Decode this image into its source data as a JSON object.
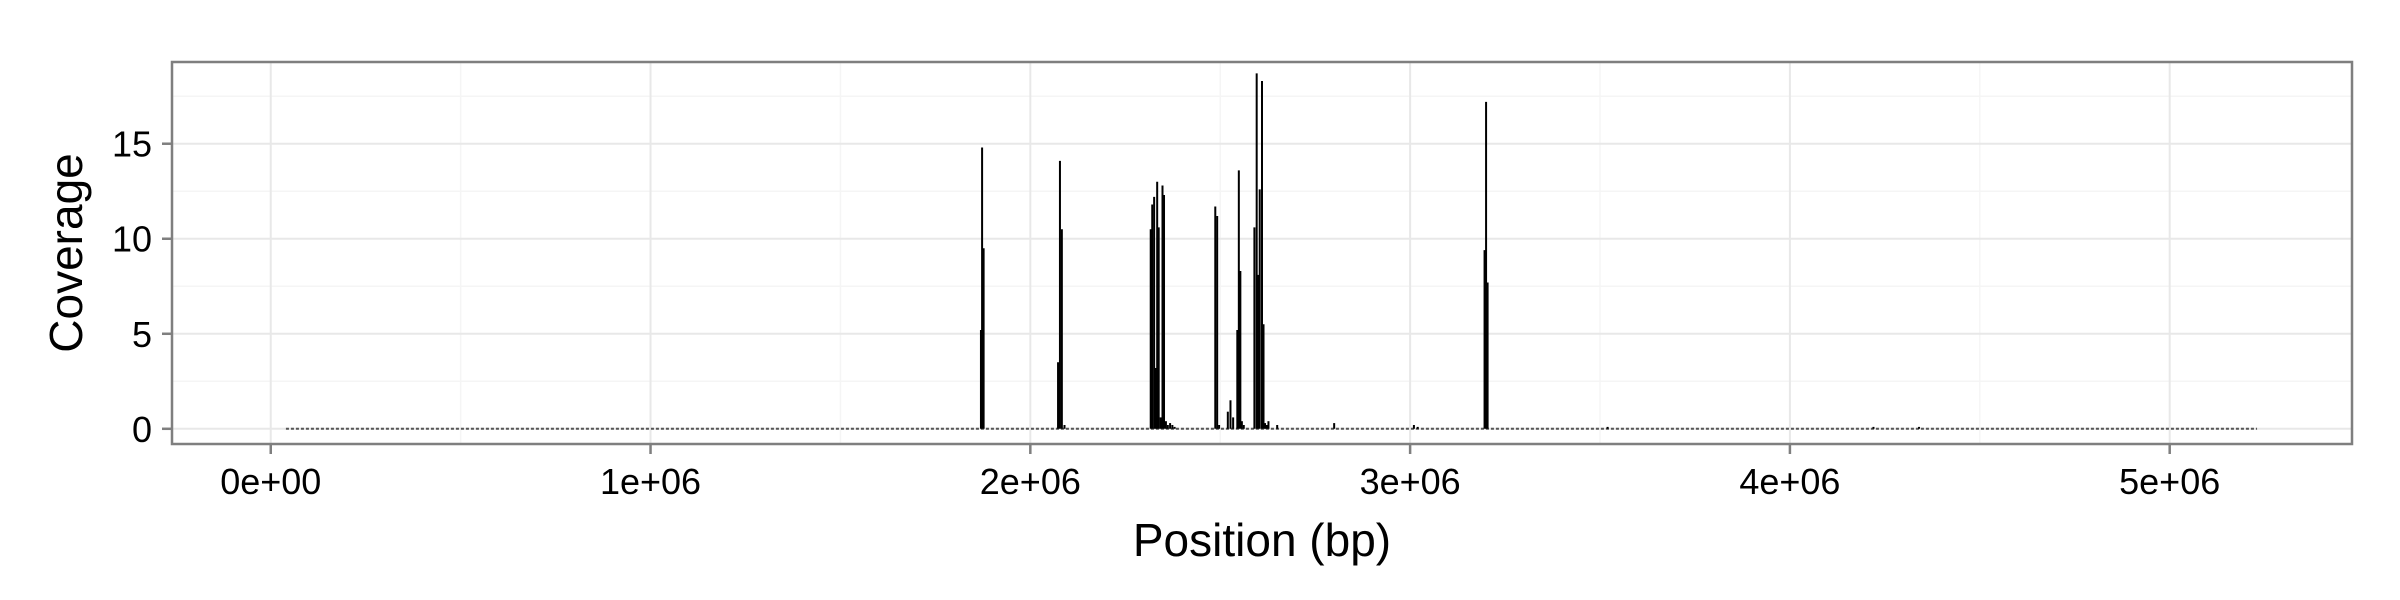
{
  "chart_data": {
    "type": "line",
    "title": "",
    "xlabel": "Position (bp)",
    "ylabel": "Coverage",
    "xlim": [
      -260000,
      5480000
    ],
    "ylim": [
      -0.8,
      19.3
    ],
    "x_ticks": [
      0,
      1000000,
      2000000,
      3000000,
      4000000,
      5000000
    ],
    "x_tick_labels": [
      "0e+00",
      "1e+06",
      "2e+06",
      "3e+06",
      "4e+06",
      "5e+06"
    ],
    "y_ticks": [
      0,
      5,
      10,
      15
    ],
    "y_tick_labels": [
      "0",
      "5",
      "10",
      "15"
    ],
    "grid": true,
    "legend": "none",
    "baseline_range": [
      40000,
      5230000
    ],
    "series": [
      {
        "color": "#000000",
        "x": [
          1870000,
          1873000,
          1877000,
          2073000,
          2078000,
          2083000,
          2090000,
          2317000,
          2321000,
          2326000,
          2330000,
          2334000,
          2338000,
          2343000,
          2348000,
          2352000,
          2357000,
          2362000,
          2368000,
          2374000,
          2380000,
          2487000,
          2492000,
          2497000,
          2520000,
          2527000,
          2534000,
          2545000,
          2549000,
          2553000,
          2557000,
          2562000,
          2590000,
          2596000,
          2600000,
          2604000,
          2610000,
          2614000,
          2618000,
          2622000,
          2627000,
          2650000,
          2800000,
          3010000,
          3020000,
          3196000,
          3200000,
          3204000,
          3520000,
          4220000,
          4340000
        ],
        "y": [
          5.2,
          14.8,
          9.5,
          3.5,
          14.1,
          10.5,
          0.2,
          10.5,
          11.8,
          12.2,
          3.2,
          13.0,
          10.6,
          0.6,
          12.8,
          12.3,
          0.4,
          0.2,
          0.3,
          0.2,
          0.1,
          11.7,
          11.2,
          0.2,
          0.9,
          1.5,
          0.6,
          5.2,
          13.6,
          8.3,
          0.4,
          0.2,
          10.6,
          18.7,
          8.1,
          12.6,
          18.3,
          5.5,
          0.3,
          0.2,
          0.4,
          0.2,
          0.3,
          0.2,
          0.1,
          9.4,
          17.2,
          7.7,
          0.1,
          0.1,
          0.1
        ]
      }
    ]
  }
}
